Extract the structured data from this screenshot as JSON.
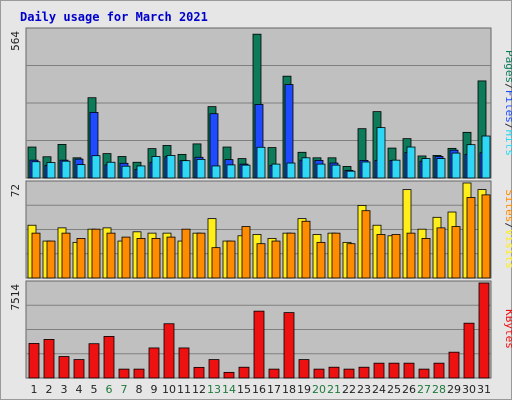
{
  "title": "Daily usage for March 2021",
  "colors": {
    "pages": "#0d7a5a",
    "files": "#1e4bff",
    "hits": "#2dd7f5",
    "sites": "#ff8c00",
    "visits": "#ffee1a",
    "kbytes": "#ee1111",
    "title": "#0000cc",
    "weekday_label": "#222222",
    "weekend_label": "#1e7a3c",
    "panel_bg": "#c0c0c0",
    "grid": "#808080"
  },
  "legend": {
    "top": [
      "Pages",
      "/",
      "Files",
      "/",
      "Hits"
    ],
    "middle": [
      "Sites",
      "/",
      "Visits"
    ],
    "bottom": [
      "KBytes"
    ]
  },
  "chart_data": [
    {
      "type": "bar",
      "name": "hits-files-pages",
      "max_label": "564",
      "ylim": [
        0,
        564
      ],
      "categories": [
        "1",
        "2",
        "3",
        "4",
        "5",
        "6",
        "7",
        "8",
        "9",
        "10",
        "11",
        "12",
        "13",
        "14",
        "15",
        "16",
        "17",
        "18",
        "19",
        "20",
        "21",
        "22",
        "23",
        "24",
        "25",
        "26",
        "27",
        "28",
        "29",
        "30",
        "31"
      ],
      "weekend_days": [
        "6",
        "7",
        "13",
        "14",
        "20",
        "21",
        "27",
        "28"
      ],
      "series": [
        {
          "name": "Pages",
          "values": [
            118,
            81,
            128,
            77,
            306,
            93,
            82,
            60,
            112,
            124,
            90,
            130,
            272,
            118,
            74,
            548,
            116,
            388,
            98,
            77,
            77,
            44,
            188,
            253,
            114,
            150,
            84,
            86,
            113,
            174,
            370
          ]
        },
        {
          "name": "Files",
          "values": [
            68,
            48,
            68,
            72,
            250,
            50,
            56,
            33,
            60,
            81,
            66,
            79,
            245,
            70,
            53,
            280,
            48,
            356,
            68,
            67,
            57,
            29,
            67,
            67,
            67,
            97,
            64,
            82,
            106,
            90,
            96
          ]
        },
        {
          "name": "Hits",
          "values": [
            62,
            59,
            64,
            51,
            85,
            60,
            45,
            46,
            82,
            86,
            66,
            71,
            46,
            50,
            49,
            117,
            53,
            57,
            77,
            53,
            49,
            26,
            61,
            192,
            68,
            118,
            74,
            74,
            95,
            127,
            160
          ]
        }
      ]
    },
    {
      "type": "bar",
      "name": "visits-sites",
      "max_label": "72",
      "ylim": [
        0,
        72
      ],
      "categories": [
        "1",
        "2",
        "3",
        "4",
        "5",
        "6",
        "7",
        "8",
        "9",
        "10",
        "11",
        "12",
        "13",
        "14",
        "15",
        "16",
        "17",
        "18",
        "19",
        "20",
        "21",
        "22",
        "23",
        "24",
        "25",
        "26",
        "27",
        "28",
        "29",
        "30",
        "31"
      ],
      "series": [
        {
          "name": "Visits",
          "values": [
            40,
            28,
            38,
            27,
            37,
            38,
            28,
            35,
            34,
            34,
            28,
            34,
            45,
            28,
            32,
            33,
            30,
            34,
            45,
            33,
            34,
            27,
            55,
            40,
            32,
            67,
            37,
            46,
            50,
            72,
            67
          ]
        },
        {
          "name": "Sites",
          "values": [
            34,
            28,
            34,
            30,
            37,
            34,
            31,
            30,
            30,
            31,
            37,
            34,
            23,
            28,
            39,
            26,
            28,
            34,
            43,
            27,
            34,
            26,
            51,
            33,
            33,
            34,
            30,
            38,
            39,
            61,
            63
          ]
        }
      ]
    },
    {
      "type": "bar",
      "name": "kbytes",
      "max_label": "7514",
      "ylim": [
        0,
        7514
      ],
      "categories": [
        "1",
        "2",
        "3",
        "4",
        "5",
        "6",
        "7",
        "8",
        "9",
        "10",
        "11",
        "12",
        "13",
        "14",
        "15",
        "16",
        "17",
        "18",
        "19",
        "20",
        "21",
        "22",
        "23",
        "24",
        "25",
        "26",
        "27",
        "28",
        "29",
        "30",
        "31"
      ],
      "series": [
        {
          "name": "KBytes",
          "values": [
            2732,
            3051,
            1700,
            1459,
            2713,
            3288,
            702,
            702,
            2378,
            4293,
            2378,
            841,
            1458,
            445,
            853,
            5288,
            702,
            5173,
            1458,
            702,
            853,
            702,
            853,
            1173,
            1173,
            1173,
            702,
            1173,
            2042,
            4335,
            7514
          ]
        }
      ]
    }
  ]
}
